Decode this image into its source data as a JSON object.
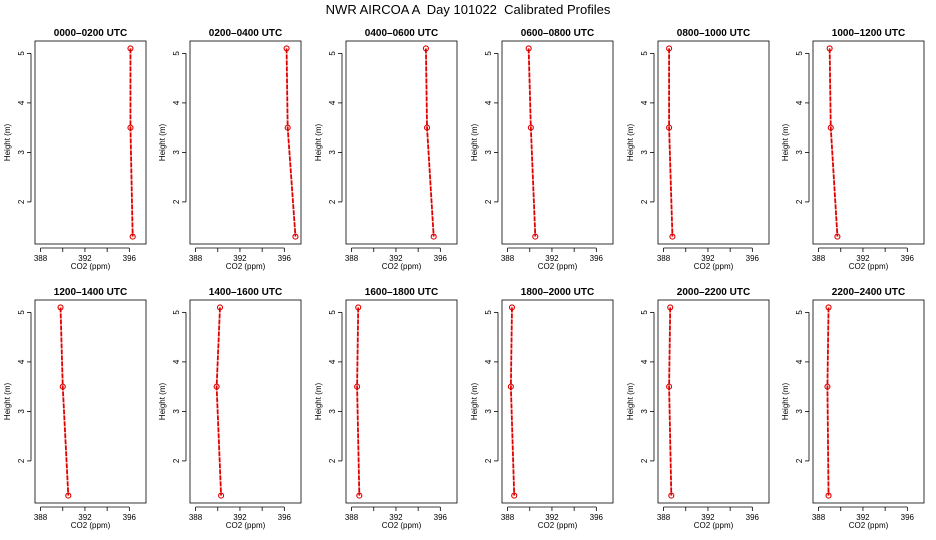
{
  "figure": {
    "title": "NWR AIRCOA A  Day 101022  Calibrated Profiles"
  },
  "shared_axes": {
    "xlabel": "CO2 (ppm)",
    "ylabel": "Height (m)",
    "xlim": [
      387.5,
      397.5
    ],
    "ylim": [
      1.15,
      5.25
    ],
    "xticks": [
      388,
      392,
      396
    ],
    "xticks_unlabeled": [
      390,
      394
    ],
    "yticks": [
      2,
      3,
      4,
      5
    ]
  },
  "colors": {
    "series": "#e00000",
    "axes": "#000000"
  },
  "chart_data": [
    {
      "type": "line",
      "title": "0000–0200 UTC",
      "xlabel": "CO2 (ppm)",
      "ylabel": "Height (m)",
      "xlim": [
        387.5,
        397.5
      ],
      "ylim": [
        1.15,
        5.25
      ],
      "series": [
        {
          "x": [
            396.1,
            396.1,
            396.3
          ],
          "y": [
            5.1,
            3.5,
            1.3
          ]
        }
      ]
    },
    {
      "type": "line",
      "title": "0200–0400 UTC",
      "xlabel": "CO2 (ppm)",
      "ylabel": "Height (m)",
      "xlim": [
        387.5,
        397.5
      ],
      "ylim": [
        1.15,
        5.25
      ],
      "series": [
        {
          "x": [
            396.2,
            396.3,
            397.0
          ],
          "y": [
            5.1,
            3.5,
            1.3
          ]
        }
      ]
    },
    {
      "type": "line",
      "title": "0400–0600 UTC",
      "xlabel": "CO2 (ppm)",
      "ylabel": "Height (m)",
      "xlim": [
        387.5,
        397.5
      ],
      "ylim": [
        1.15,
        5.25
      ],
      "series": [
        {
          "x": [
            394.7,
            394.8,
            395.4
          ],
          "y": [
            5.1,
            3.5,
            1.3
          ]
        }
      ]
    },
    {
      "type": "line",
      "title": "0600–0800 UTC",
      "xlabel": "CO2 (ppm)",
      "ylabel": "Height (m)",
      "xlim": [
        387.5,
        397.5
      ],
      "ylim": [
        1.15,
        5.25
      ],
      "series": [
        {
          "x": [
            389.9,
            390.1,
            390.5
          ],
          "y": [
            5.1,
            3.5,
            1.3
          ]
        }
      ]
    },
    {
      "type": "line",
      "title": "0800–1000 UTC",
      "xlabel": "CO2 (ppm)",
      "ylabel": "Height (m)",
      "xlim": [
        387.5,
        397.5
      ],
      "ylim": [
        1.15,
        5.25
      ],
      "series": [
        {
          "x": [
            388.5,
            388.5,
            388.8
          ],
          "y": [
            5.1,
            3.5,
            1.3
          ]
        }
      ]
    },
    {
      "type": "line",
      "title": "1000–1200 UTC",
      "xlabel": "CO2 (ppm)",
      "ylabel": "Height (m)",
      "xlim": [
        387.5,
        397.5
      ],
      "ylim": [
        1.15,
        5.25
      ],
      "series": [
        {
          "x": [
            389.0,
            389.1,
            389.7
          ],
          "y": [
            5.1,
            3.5,
            1.3
          ]
        }
      ]
    },
    {
      "type": "line",
      "title": "1200–1400 UTC",
      "xlabel": "CO2 (ppm)",
      "ylabel": "Height (m)",
      "xlim": [
        387.5,
        397.5
      ],
      "ylim": [
        1.15,
        5.25
      ],
      "series": [
        {
          "x": [
            389.8,
            390.0,
            390.5
          ],
          "y": [
            5.1,
            3.5,
            1.3
          ]
        }
      ]
    },
    {
      "type": "line",
      "title": "1400–1600 UTC",
      "xlabel": "CO2 (ppm)",
      "ylabel": "Height (m)",
      "xlim": [
        387.5,
        397.5
      ],
      "ylim": [
        1.15,
        5.25
      ],
      "series": [
        {
          "x": [
            390.2,
            389.9,
            390.3
          ],
          "y": [
            5.1,
            3.5,
            1.3
          ]
        }
      ]
    },
    {
      "type": "line",
      "title": "1600–1800 UTC",
      "xlabel": "CO2 (ppm)",
      "ylabel": "Height (m)",
      "xlim": [
        387.5,
        397.5
      ],
      "ylim": [
        1.15,
        5.25
      ],
      "series": [
        {
          "x": [
            388.6,
            388.5,
            388.7
          ],
          "y": [
            5.1,
            3.5,
            1.3
          ]
        }
      ]
    },
    {
      "type": "line",
      "title": "1800–2000 UTC",
      "xlabel": "CO2 (ppm)",
      "ylabel": "Height (m)",
      "xlim": [
        387.5,
        397.5
      ],
      "ylim": [
        1.15,
        5.25
      ],
      "series": [
        {
          "x": [
            388.4,
            388.3,
            388.6
          ],
          "y": [
            5.1,
            3.5,
            1.3
          ]
        }
      ]
    },
    {
      "type": "line",
      "title": "2000–2200 UTC",
      "xlabel": "CO2 (ppm)",
      "ylabel": "Height (m)",
      "xlim": [
        387.5,
        397.5
      ],
      "ylim": [
        1.15,
        5.25
      ],
      "series": [
        {
          "x": [
            388.6,
            388.5,
            388.7
          ],
          "y": [
            5.1,
            3.5,
            1.3
          ]
        }
      ]
    },
    {
      "type": "line",
      "title": "2200–2400 UTC",
      "xlabel": "CO2 (ppm)",
      "ylabel": "Height (m)",
      "xlim": [
        387.5,
        397.5
      ],
      "ylim": [
        1.15,
        5.25
      ],
      "series": [
        {
          "x": [
            388.9,
            388.8,
            388.9
          ],
          "y": [
            5.1,
            3.5,
            1.3
          ]
        }
      ]
    }
  ]
}
